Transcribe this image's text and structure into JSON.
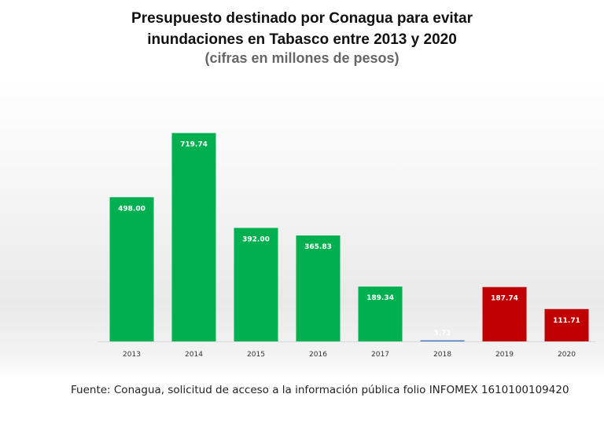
{
  "chart_data": {
    "type": "bar",
    "title_line1": "Presupuesto destinado por Conagua para evitar",
    "title_line2": "inundaciones en Tabasco entre 2013 y 2020",
    "subtitle": "(cifras en millones de pesos)",
    "categories": [
      "2013",
      "2014",
      "2015",
      "2016",
      "2017",
      "2018",
      "2019",
      "2020"
    ],
    "values": [
      498.0,
      719.74,
      392.0,
      365.83,
      189.34,
      3.71,
      187.74,
      111.71
    ],
    "value_labels": [
      "498.00",
      "719.74",
      "392.00",
      "365.83",
      "189.34",
      "3.71",
      "187.74",
      "111.71"
    ],
    "colors": [
      "#00b050",
      "#00b050",
      "#00b050",
      "#00b050",
      "#00b050",
      "#4472c4",
      "#c00000",
      "#c00000"
    ],
    "xlabel": "",
    "ylabel": "",
    "ylim": [
      0,
      740
    ],
    "grid": false,
    "legend": "none"
  },
  "source": "Fuente: Conagua, solicitud de acceso a la información pública folio INFOMEX 1610100109420"
}
